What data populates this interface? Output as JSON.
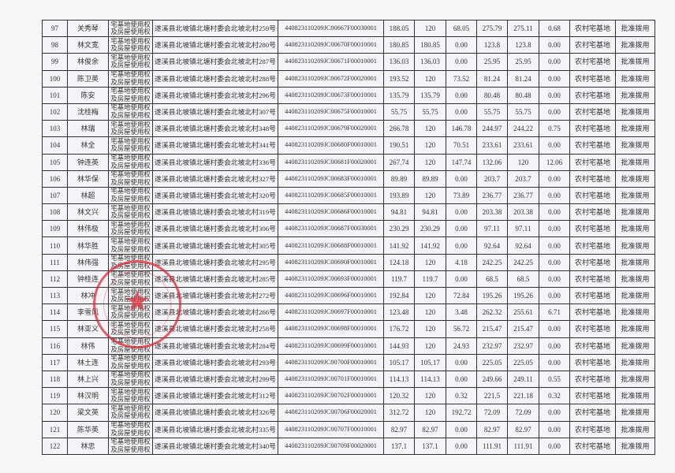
{
  "columns": [
    "no",
    "name",
    "right_type",
    "address",
    "code",
    "a1",
    "a2",
    "a3",
    "a4",
    "a5",
    "a6",
    "land_type",
    "status"
  ],
  "right_type_lines": [
    "宅基地使用权",
    "及房屋使用权"
  ],
  "land_type": "农村宅基地",
  "status": "批准拨用",
  "stamp_color": "#e12832",
  "rows": [
    [
      "97",
      "关秀琴",
      "遂溪县北坡镇北塘村委会北坡北村259号",
      "440823110209JC00667F00030001",
      "188.05",
      "120",
      "68.05",
      "275.79",
      "275.11",
      "0.68"
    ],
    [
      "98",
      "林文宽",
      "遂溪县北坡镇北塘村委会北坡北村280号",
      "440823110209JC00670F00010001",
      "180.85",
      "180.85",
      "0.00",
      "123.8",
      "123.8",
      "0.00"
    ],
    [
      "99",
      "林俊余",
      "遂溪县北坡镇北塘村委会北坡北村287号",
      "440823110209JC00671F00010001",
      "136.03",
      "136.03",
      "0.00",
      "25.95",
      "25.95",
      "0.00"
    ],
    [
      "100",
      "陈卫英",
      "遂溪县北坡镇北塘村委会北坡北村288号",
      "440823110209JC00672F00020001",
      "193.52",
      "120",
      "73.52",
      "81.24",
      "81.24",
      "0.00"
    ],
    [
      "101",
      "陈安",
      "遂溪县北坡镇北塘村委会北坡北村296号",
      "440823110209JC00673F00010001",
      "135.79",
      "135.79",
      "0.00",
      "80.48",
      "80.48",
      "0.00"
    ],
    [
      "102",
      "沈桂梅",
      "遂溪县北坡镇北塘村委会北坡北村307号",
      "440823110209JC00675F00010001",
      "55.75",
      "55.75",
      "0.00",
      "55.75",
      "55.75",
      "0.00"
    ],
    [
      "103",
      "林瑞",
      "遂溪县北坡镇北塘村委会北坡北村348号",
      "440823110209JC00679F00020001",
      "266.78",
      "120",
      "146.78",
      "244.97",
      "244.22",
      "0.75"
    ],
    [
      "104",
      "林全",
      "遂溪县北坡镇北塘村委会北坡北村341号",
      "440823110209JC00680F00010001",
      "190.51",
      "120",
      "70.51",
      "233.61",
      "233.61",
      "0.00"
    ],
    [
      "105",
      "钟连英",
      "遂溪县北坡镇北塘村委会北坡北村336号",
      "440823110209JC00681F00020001",
      "267.74",
      "120",
      "147.74",
      "132.06",
      "120",
      "12.06"
    ],
    [
      "106",
      "林华保",
      "遂溪县北坡镇北塘村委会北坡北村327号",
      "440823110209JC00683F00010001",
      "89.89",
      "89.89",
      "0.00",
      "203.7",
      "203.7",
      "0.00"
    ],
    [
      "107",
      "林超",
      "遂溪县北坡镇北塘村委会北坡北村320号",
      "440823110209JC00685F00010001",
      "193.89",
      "120",
      "73.89",
      "236.77",
      "236.77",
      "0.00"
    ],
    [
      "108",
      "林文兴",
      "遂溪县北坡镇北塘村委会北坡北村319号",
      "440823110209JC00686F00010001",
      "94.81",
      "94.81",
      "0.00",
      "203.38",
      "203.38",
      "0.00"
    ],
    [
      "109",
      "林伟极",
      "遂溪县北坡镇北塘村委会北坡北村306号",
      "440823110209JC00687F00030001",
      "230.29",
      "230.29",
      "0.00",
      "97.11",
      "97.11",
      "0.00"
    ],
    [
      "110",
      "林华胜",
      "遂溪县北坡镇北塘村委会北坡北村305号",
      "440823110209JC00688F00010001",
      "141.92",
      "141.92",
      "0.00",
      "92.64",
      "92.64",
      "0.00"
    ],
    [
      "111",
      "林伟强",
      "遂溪县北坡镇北塘村委会北坡北村295号",
      "440823110209JC00690F00010001",
      "124.18",
      "120",
      "4.18",
      "242.25",
      "242.25",
      "0.00"
    ],
    [
      "112",
      "钟桂连",
      "遂溪县北坡镇北塘村委会北坡北村285号",
      "440823110209JC00693F00010001",
      "119.7",
      "119.7",
      "0.00",
      "68.5",
      "68.5",
      "0.00"
    ],
    [
      "113",
      "林冲",
      "遂溪县北坡镇北塘村委会北坡北村272号",
      "440823110209JC00696F00010001",
      "192.84",
      "120",
      "72.84",
      "195.26",
      "195.26",
      "0.00"
    ],
    [
      "114",
      "李雪风",
      "遂溪县北坡镇北塘村委会北坡北村266号",
      "440823110209JC00697F00010001",
      "123.48",
      "120",
      "3.48",
      "262.32",
      "255.61",
      "6.71"
    ],
    [
      "115",
      "林亚义",
      "遂溪县北坡镇北塘村委会北坡北村258号",
      "440823110209JC00698F00010001",
      "176.72",
      "120",
      "56.72",
      "215.47",
      "215.47",
      "0.00"
    ],
    [
      "116",
      "林伟",
      "遂溪县北坡镇北塘村委会北坡北村284号",
      "440823110209JC00699F00010001",
      "144.93",
      "120",
      "24.93",
      "232.97",
      "232.97",
      "0.00"
    ],
    [
      "117",
      "林土连",
      "遂溪县北坡镇北塘村委会北坡北村293号",
      "440823110209JC00700F00010001",
      "105.17",
      "105.17",
      "0.00",
      "225.05",
      "225.05",
      "0.00"
    ],
    [
      "118",
      "林上兴",
      "遂溪县北坡镇北塘村委会北坡北村299号",
      "440823110209JC00701F00010001",
      "114.13",
      "114.13",
      "0.00",
      "249.66",
      "249.11",
      "0.55"
    ],
    [
      "119",
      "林汉明",
      "遂溪县北坡镇北塘村委会北坡北村312号",
      "440823110209JC00702F00010001",
      "120.32",
      "120",
      "0.32",
      "221.5",
      "221.18",
      "0.32"
    ],
    [
      "120",
      "梁文英",
      "遂溪县北坡镇北塘村委会北坡北村326号",
      "440823110209JC00706F00020001",
      "312.72",
      "120",
      "192.72",
      "72.09",
      "72.09",
      "0.00"
    ],
    [
      "121",
      "陈华英",
      "遂溪县北坡镇北塘村委会北坡北村335号",
      "440823110209JC00707F00010001",
      "82.97",
      "82.97",
      "0.00",
      "82.97",
      "82.97",
      "0.00"
    ],
    [
      "122",
      "林忠",
      "遂溪县北坡镇北塘村委会北坡北村340号",
      "440823110209JC00709F00020001",
      "137.1",
      "137.1",
      "0.00",
      "111.91",
      "111.91",
      "0.00"
    ]
  ]
}
